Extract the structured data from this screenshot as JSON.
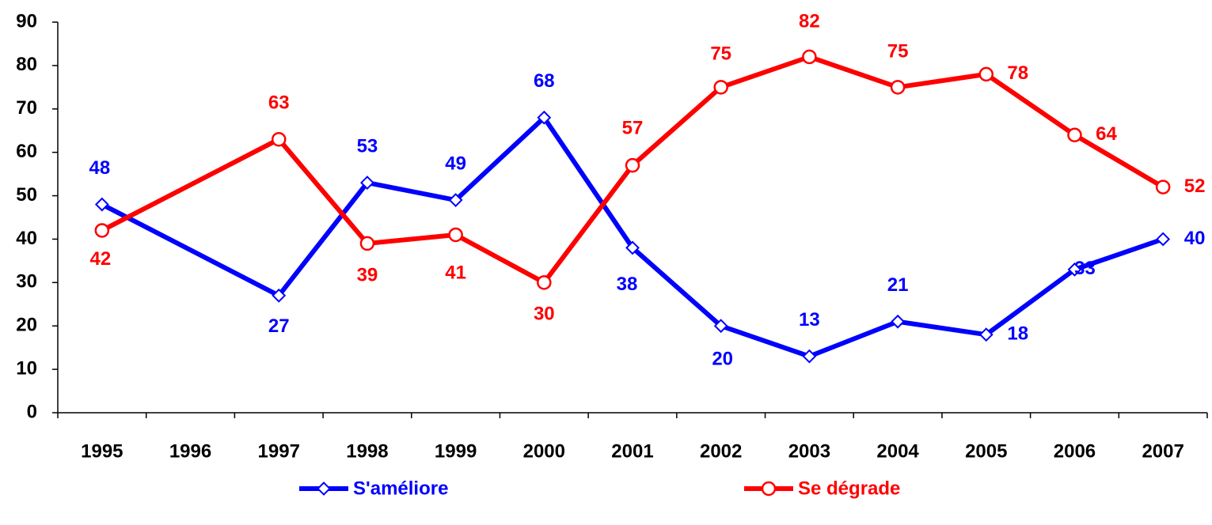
{
  "chart_data": {
    "type": "line",
    "categories": [
      "1995",
      "1996",
      "1997",
      "1998",
      "1999",
      "2000",
      "2001",
      "2002",
      "2003",
      "2004",
      "2005",
      "2006",
      "2007"
    ],
    "series": [
      {
        "name": "S'améliore",
        "color": "#0000ff",
        "marker": "diamond",
        "values": [
          48,
          null,
          27,
          53,
          49,
          68,
          38,
          20,
          13,
          21,
          18,
          33,
          40
        ]
      },
      {
        "name": "Se dégrade",
        "color": "#ff0000",
        "marker": "circle",
        "values": [
          42,
          null,
          63,
          39,
          41,
          30,
          57,
          75,
          82,
          75,
          78,
          64,
          52
        ]
      }
    ],
    "ylim": [
      0,
      90
    ],
    "yticks": [
      0,
      10,
      20,
      30,
      40,
      50,
      60,
      70,
      80,
      90
    ],
    "grid": false
  }
}
